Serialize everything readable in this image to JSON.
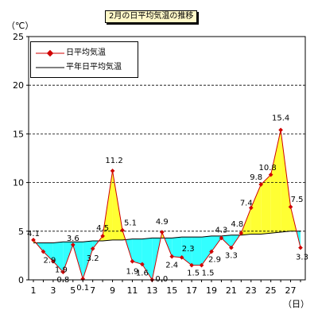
{
  "chart_data": {
    "type": "line",
    "title": "2月の日平均気温の推移",
    "y_unit_label": "（℃）",
    "x_unit_label": "（日）",
    "ylim": [
      0,
      25
    ],
    "yticks": [
      0,
      5,
      10,
      15,
      20,
      25
    ],
    "xlim": [
      1,
      28
    ],
    "xticks": [
      1,
      3,
      5,
      7,
      9,
      11,
      13,
      15,
      17,
      19,
      21,
      23,
      25,
      27
    ],
    "grid": "horizontal dashed at 5, 10, 15, 20",
    "legend_position": "top-left",
    "x": [
      1,
      2,
      3,
      4,
      5,
      6,
      7,
      8,
      9,
      10,
      11,
      12,
      13,
      14,
      15,
      16,
      17,
      18,
      19,
      20,
      21,
      22,
      23,
      24,
      25,
      26,
      27,
      28
    ],
    "series": [
      {
        "name": "日平均気温",
        "color": "#d00000",
        "marker": "diamond",
        "values": [
          4.1,
          2.9,
          1.9,
          0.8,
          3.6,
          0.1,
          3.2,
          4.5,
          11.2,
          5.1,
          1.9,
          1.6,
          0.0,
          4.9,
          2.4,
          2.3,
          1.5,
          1.5,
          2.9,
          4.3,
          3.3,
          4.8,
          7.4,
          9.8,
          10.8,
          15.4,
          7.5,
          3.3
        ],
        "labels": [
          "4.1",
          "2.9",
          "1.9",
          "0.8",
          "3.6",
          "0.1",
          "3.2",
          "4.5",
          "11.2",
          "5.1",
          "1.9",
          "1.6",
          "0.0",
          "4.9",
          "2.4",
          "2.3",
          "1.5",
          "1.5",
          "2.9",
          "4.3",
          "3.3",
          "4.8",
          "7.4",
          "9.8",
          "10.8",
          "15.4",
          "7.5",
          "3.3"
        ]
      },
      {
        "name": "平年日平均気温",
        "color": "#000000",
        "values": [
          3.8,
          3.8,
          3.8,
          3.9,
          3.9,
          3.9,
          4.0,
          4.0,
          4.1,
          4.1,
          4.2,
          4.2,
          4.3,
          4.3,
          4.3,
          4.4,
          4.4,
          4.4,
          4.5,
          4.5,
          4.6,
          4.6,
          4.7,
          4.7,
          4.8,
          4.9,
          5.0,
          5.0
        ]
      }
    ],
    "fill_above_color": "#ffff33",
    "fill_below_color": "#33ffff"
  }
}
